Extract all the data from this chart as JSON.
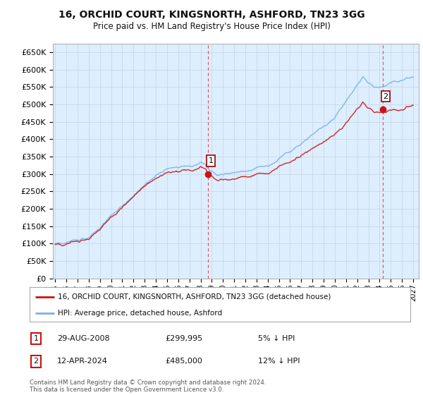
{
  "title": "16, ORCHID COURT, KINGSNORTH, ASHFORD, TN23 3GG",
  "subtitle": "Price paid vs. HM Land Registry's House Price Index (HPI)",
  "yticks": [
    0,
    50000,
    100000,
    150000,
    200000,
    250000,
    300000,
    350000,
    400000,
    450000,
    500000,
    550000,
    600000,
    650000
  ],
  "ylim": [
    0,
    675000
  ],
  "xlim_start": 1994.8,
  "xlim_end": 2027.5,
  "xticks": [
    1995,
    1996,
    1997,
    1998,
    1999,
    2000,
    2001,
    2002,
    2003,
    2004,
    2005,
    2006,
    2007,
    2008,
    2009,
    2010,
    2011,
    2012,
    2013,
    2014,
    2015,
    2016,
    2017,
    2018,
    2019,
    2020,
    2021,
    2022,
    2023,
    2024,
    2025,
    2026,
    2027
  ],
  "transaction1_x": 2008.66,
  "transaction1_y": 299995,
  "transaction2_x": 2024.28,
  "transaction2_y": 485000,
  "transaction1_date": "29-AUG-2008",
  "transaction1_price": "£299,995",
  "transaction1_pct": "5% ↓ HPI",
  "transaction2_date": "12-APR-2024",
  "transaction2_price": "£485,000",
  "transaction2_pct": "12% ↓ HPI",
  "hpi_color": "#7ab0e8",
  "price_color": "#cc1111",
  "vline_color": "#e05050",
  "grid_color": "#c8d8e8",
  "bg_color": "#ffffff",
  "plot_bg_color": "#ddeeff",
  "legend_label_price": "16, ORCHID COURT, KINGSNORTH, ASHFORD, TN23 3GG (detached house)",
  "legend_label_hpi": "HPI: Average price, detached house, Ashford",
  "footnote": "Contains HM Land Registry data © Crown copyright and database right 2024.\nThis data is licensed under the Open Government Licence v3.0."
}
